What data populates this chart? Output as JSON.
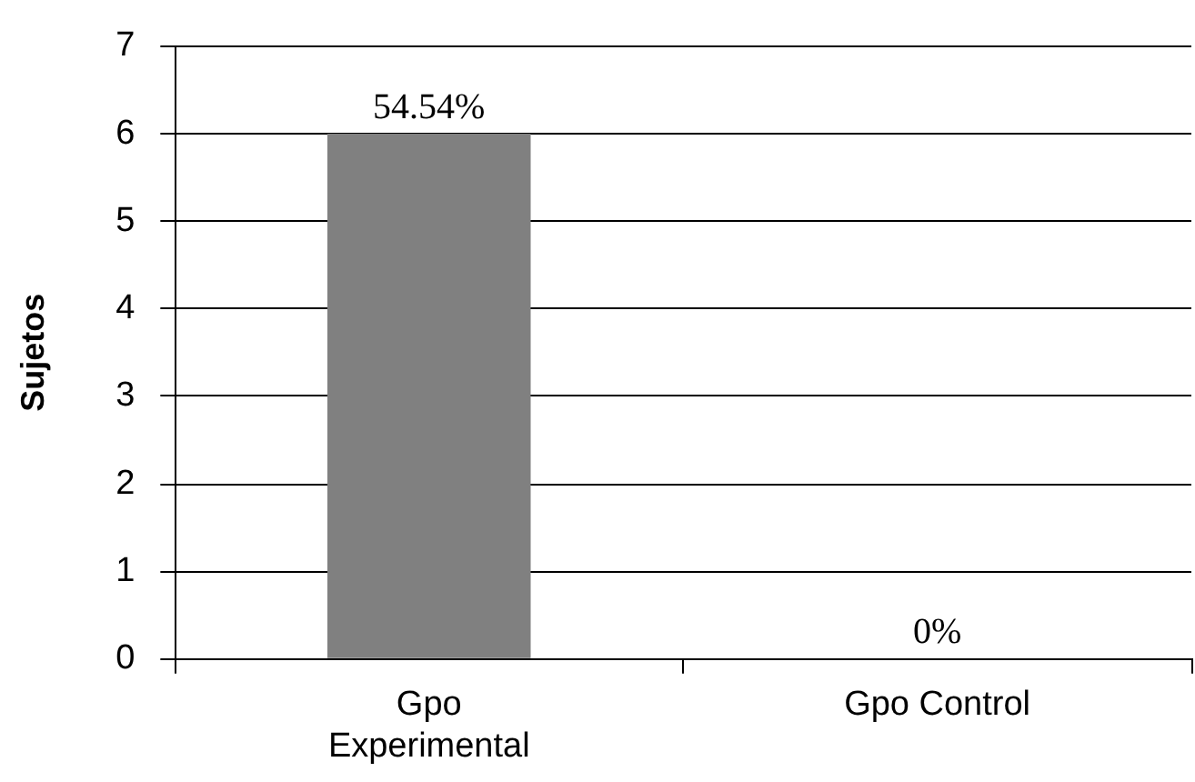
{
  "chart_data": {
    "type": "bar",
    "ylabel": "Sujetos",
    "categories": [
      "Gpo Experimental",
      "Gpo Control"
    ],
    "values": [
      6,
      0
    ],
    "color": "#808080",
    "ylim": [
      0,
      7
    ],
    "yticks": [
      0,
      1,
      2,
      3,
      4,
      5,
      6,
      7
    ],
    "grid": "y",
    "legend": false,
    "annotations": [
      {
        "text": "54.54%",
        "x": "Gpo Experimental",
        "y": 6
      },
      {
        "text": "0%",
        "x": "Gpo Control",
        "y": 0
      }
    ]
  }
}
